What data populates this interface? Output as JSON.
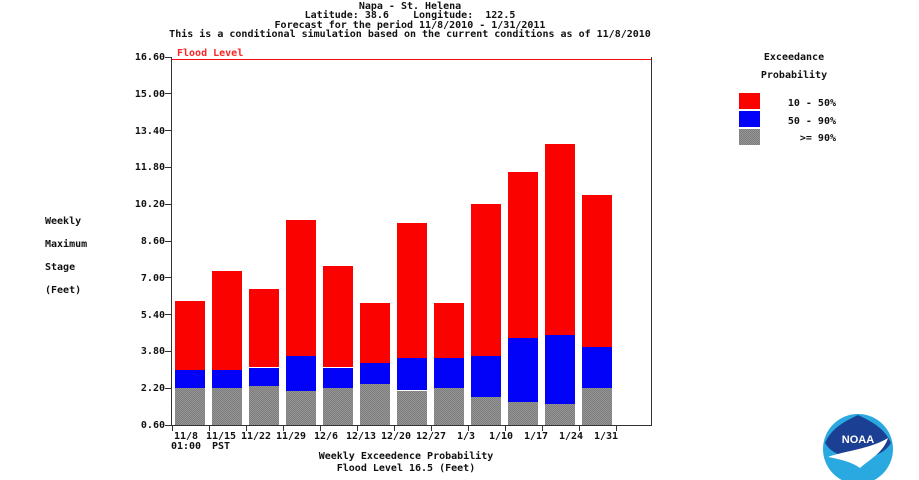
{
  "title": {
    "line1": "Napa - St. Helena",
    "line2": "Latitude: 38.6    Longitude:  122.5",
    "line3": "Forecast for the period 11/8/2010 - 1/31/2011",
    "line4": "This is a conditional simulation based on the current conditions as of 11/8/2010"
  },
  "y_axis_title": [
    "Weekly",
    "Maximum",
    "Stage",
    "(Feet)"
  ],
  "flood": {
    "label": "Flood Level",
    "line_color": "#fb0e0e"
  },
  "legend": {
    "title_line1": "Exceedance",
    "title_line2": "Probability",
    "items": [
      {
        "label": "10 - 50%",
        "color": "#fa0200",
        "dither": false
      },
      {
        "label": "50 - 90%",
        "color": "#0202f8",
        "dither": false
      },
      {
        "label": ">= 90%",
        "color": "#8a8a8a",
        "dither": true
      }
    ]
  },
  "x_axis": {
    "tick_labels": [
      "11/8",
      "11/15",
      "11/22",
      "11/29",
      "12/6",
      "12/13",
      "12/20",
      "12/27",
      "1/3",
      "1/10",
      "1/17",
      "1/24",
      "1/31"
    ],
    "sub_labels": [
      "01:00",
      "PST"
    ],
    "caption_line1": "Weekly Exceedence Probability",
    "caption_line2": "Flood Level 16.5 (Feet)"
  },
  "logo": {
    "name": "NOAA",
    "text": "NOAA",
    "dark_blue": "#1b3f93",
    "light_blue": "#29a9e0"
  },
  "chart_data": {
    "type": "bar",
    "stacked": true,
    "title": "Napa - St. Helena",
    "ylabel": "Weekly Maximum Stage (Feet)",
    "xlabel": "Weekly Exceedence Probability",
    "ylim": [
      0.6,
      16.6
    ],
    "yticks": [
      "16.60",
      "15.00",
      "13.40",
      "11.80",
      "10.20",
      "8.60",
      "7.00",
      "5.40",
      "3.80",
      "2.20",
      "0.60"
    ],
    "flood_level_feet": 16.5,
    "grid": false,
    "legend_position": "right",
    "categories": [
      "11/8",
      "11/15",
      "11/22",
      "11/29",
      "12/6",
      "12/13",
      "12/20",
      "12/27",
      "1/3",
      "1/10",
      "1/17",
      "1/24",
      "1/31"
    ],
    "bar_weeks": [
      "11/8-11/15",
      "11/15-11/22",
      "11/22-11/29",
      "11/29-12/6",
      "12/6-12/13",
      "12/13-12/20",
      "12/20-12/27",
      "12/27-1/3",
      "1/3-1/10",
      "1/10-1/17",
      "1/17-1/24",
      "1/24-1/31"
    ],
    "series": [
      {
        "name": ">= 90%",
        "color": "#8a8a8a",
        "dither": true,
        "stack_top_feet": [
          2.2,
          2.2,
          2.3,
          2.1,
          2.2,
          2.4,
          2.1,
          2.2,
          1.8,
          1.6,
          1.5,
          2.2
        ]
      },
      {
        "name": "50 - 90%",
        "color": "#0202f8",
        "dither": false,
        "stack_top_feet": [
          3.0,
          3.0,
          3.1,
          3.6,
          3.1,
          3.3,
          3.5,
          3.5,
          3.6,
          4.4,
          4.5,
          4.0
        ]
      },
      {
        "name": "10 - 50%",
        "color": "#fa0200",
        "dither": false,
        "stack_top_feet": [
          6.0,
          7.3,
          6.5,
          9.5,
          7.5,
          5.9,
          9.4,
          5.9,
          10.2,
          11.6,
          12.8,
          10.6
        ]
      }
    ]
  }
}
